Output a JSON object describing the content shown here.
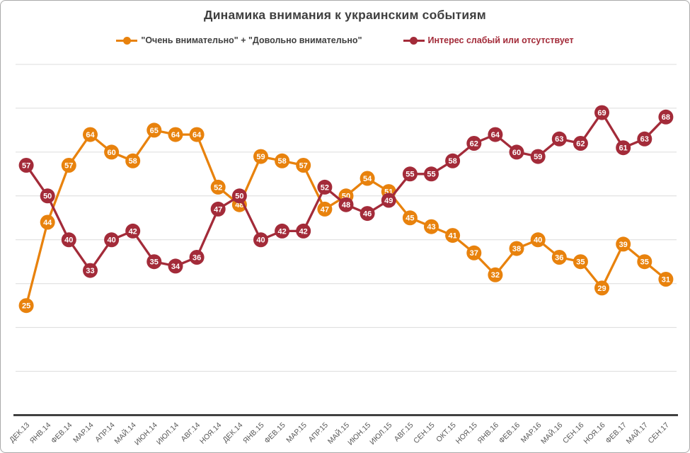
{
  "title": "Динамика внимания к украинским событиям",
  "legend": [
    {
      "label": "\"Очень внимательно\" + \"Довольно внимательно\"",
      "color": "#E8820D",
      "text_color": "#404040"
    },
    {
      "label": "Интерес слабый или отсутствует",
      "color": "#A32B39",
      "text_color": "#A32B39"
    }
  ],
  "chart_data": {
    "type": "line",
    "title": "Динамика внимания к украинским событиям",
    "categories": [
      "ДЕК.13",
      "ЯНВ.14",
      "ФЕВ.14",
      "МАР.14",
      "АПР.14",
      "МАЙ.14",
      "ИЮН.14",
      "ИЮЛ.14",
      "АВГ.14",
      "НОЯ.14",
      "ДЕК.14",
      "ЯНВ.15",
      "ФЕВ.15",
      "МАР.15",
      "АПР.15",
      "МАЙ.15",
      "ИЮН.15",
      "ИЮЛ.15",
      "АВГ.15",
      "СЕН.15",
      "ОКТ.15",
      "НОЯ.15",
      "ЯНВ.16",
      "ФЕВ.16",
      "МАР.16",
      "МАЙ.16",
      "СЕН.16",
      "НОЯ.16",
      "ФЕВ.17",
      "МАЙ.17",
      "СЕН.17"
    ],
    "series": [
      {
        "name": "\"Очень внимательно\" + \"Довольно внимательно\"",
        "color": "#E8820D",
        "values": [
          25,
          44,
          57,
          64,
          60,
          58,
          65,
          64,
          64,
          52,
          48,
          59,
          58,
          57,
          47,
          50,
          54,
          51,
          45,
          43,
          41,
          37,
          32,
          38,
          40,
          36,
          35,
          29,
          39,
          35,
          31
        ]
      },
      {
        "name": "Интерес слабый или отсутствует",
        "color": "#A32B39",
        "values": [
          57,
          50,
          40,
          33,
          40,
          42,
          35,
          34,
          36,
          47,
          50,
          40,
          42,
          42,
          52,
          48,
          46,
          49,
          55,
          55,
          58,
          62,
          64,
          60,
          59,
          63,
          62,
          69,
          61,
          63,
          68
        ]
      }
    ],
    "xlabel": "",
    "ylabel": "",
    "ylim": [
      0,
      80
    ],
    "gridlines": [
      10,
      20,
      30,
      40,
      50,
      60,
      70,
      80
    ],
    "grid_on": true,
    "grid_color": "#dcdcdc",
    "axis_color": "#404040",
    "data_labels": "values shown in white inside circular markers",
    "legend_position": "top"
  }
}
